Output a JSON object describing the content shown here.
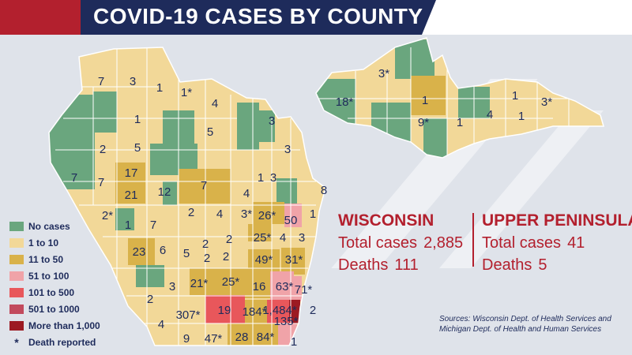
{
  "title": "COVID-19 CASES BY COUNTY",
  "colors": {
    "no_cases": "#6aa67e",
    "1_10": "#f2d898",
    "11_50": "#d9b24a",
    "51_100": "#f0a3a8",
    "101_500": "#e8575b",
    "501_1000": "#c24a5d",
    "over_1000": "#9c1a22",
    "title_blue": "#1e2b5b",
    "title_red": "#b3202e",
    "label_text": "#1e2b5b"
  },
  "legend": {
    "items": [
      {
        "label": "No cases",
        "color": "#6aa67e"
      },
      {
        "label": "1 to 10",
        "color": "#f2d898"
      },
      {
        "label": "11 to 50",
        "color": "#d9b24a"
      },
      {
        "label": "51 to 100",
        "color": "#f0a3a8"
      },
      {
        "label": "101 to 500",
        "color": "#e8575b"
      },
      {
        "label": "501 to 1000",
        "color": "#c24a5d"
      },
      {
        "label": "More than 1,000",
        "color": "#9c1a22"
      }
    ],
    "death_symbol": "*",
    "death_label": "Death reported"
  },
  "wisconsin": {
    "heading": "WISCONSIN",
    "total_label": "Total cases",
    "total_value": "2,885",
    "deaths_label": "Deaths",
    "deaths_value": "111"
  },
  "upper_peninsula": {
    "heading": "UPPER PENINSULA",
    "total_label": "Total cases",
    "total_value": "41",
    "deaths_label": "Deaths",
    "deaths_value": "5"
  },
  "sources": {
    "line1": "Sources: Wisconsin Dept. of Health Services and",
    "line2": "Michigan Dept. of Health and Human Services"
  },
  "map_labels": [
    "7",
    "3",
    "1",
    "1*",
    "4",
    "1",
    "5",
    "3",
    "2",
    "5",
    "3",
    "7",
    "7",
    "17",
    "21",
    "12",
    "7",
    "1",
    "3",
    "4",
    "8",
    "2*",
    "1",
    "7",
    "2",
    "4",
    "3*",
    "26*",
    "50",
    "1",
    "2",
    "2",
    "25*",
    "4",
    "3",
    "23",
    "6",
    "5",
    "2",
    "2",
    "49*",
    "31*",
    "2",
    "3",
    "21*",
    "25*",
    "16",
    "63*",
    "71*",
    "4",
    "307*",
    "19",
    "184*",
    "1,484*",
    "2",
    "9",
    "47*",
    "28",
    "84*",
    "135*",
    "1",
    "3*",
    "18*",
    "1",
    "1",
    "3*",
    "9*",
    "1",
    "4",
    "1"
  ]
}
